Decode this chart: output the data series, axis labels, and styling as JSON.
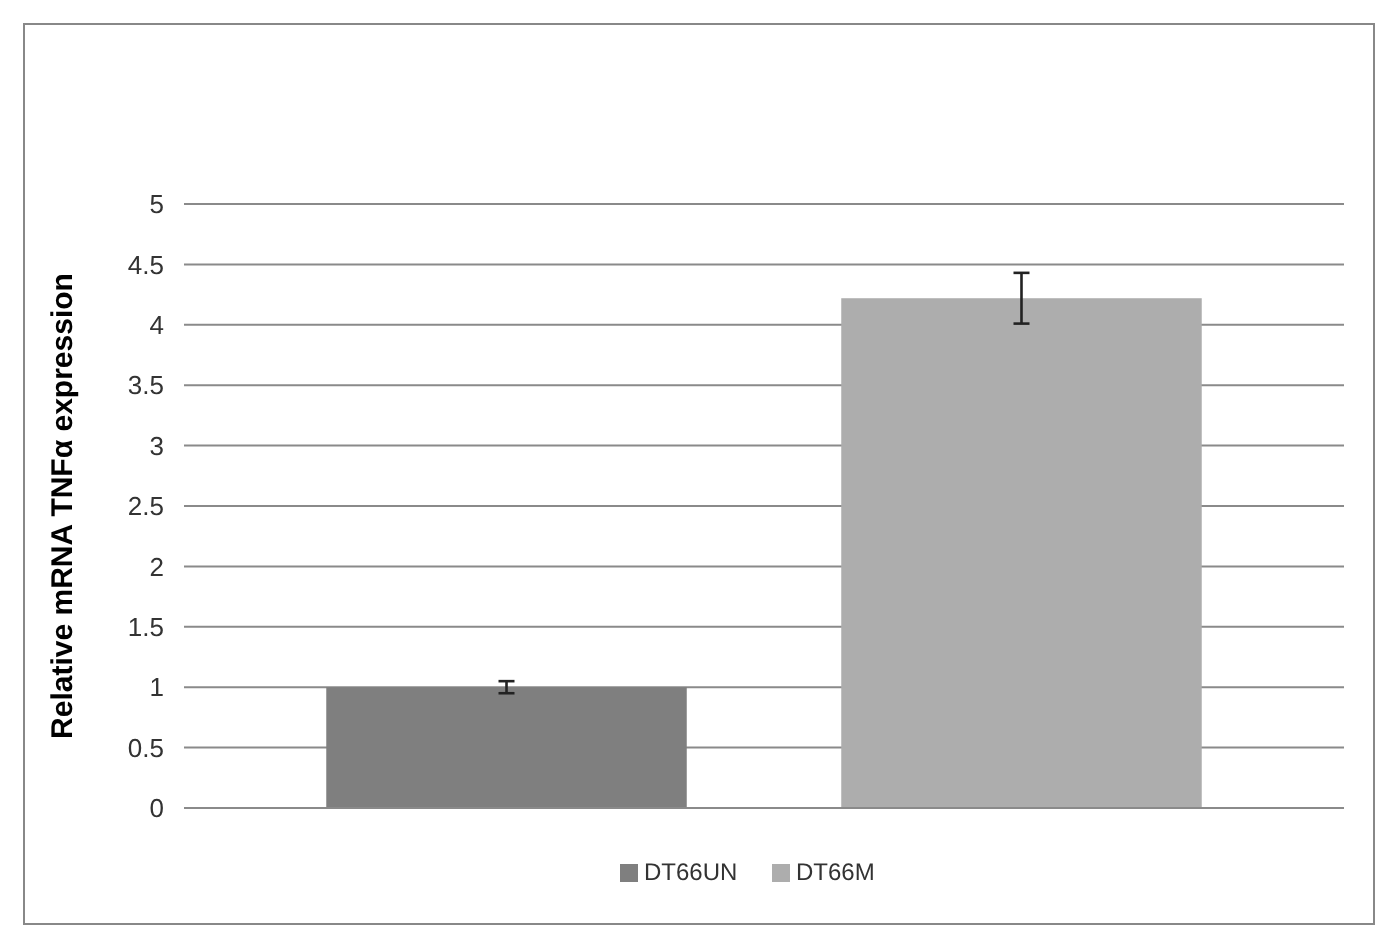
{
  "chart_data": {
    "type": "bar",
    "ylabel": "Relative mRNA TNFα expression",
    "categories": [
      null
    ],
    "series": [
      {
        "name": "DT66UN",
        "color": "#7f7f7f",
        "values": [
          1
        ],
        "errors": [
          0.05
        ]
      },
      {
        "name": "DT66M",
        "color": "#adadad",
        "values": [
          4.22
        ],
        "errors": [
          0.21
        ]
      }
    ],
    "ylim": [
      0,
      5
    ],
    "yticks": [
      0,
      0.5,
      1,
      1.5,
      2,
      2.5,
      3,
      3.5,
      4,
      4.5,
      5
    ],
    "grid": "y",
    "legend": "bottom"
  }
}
